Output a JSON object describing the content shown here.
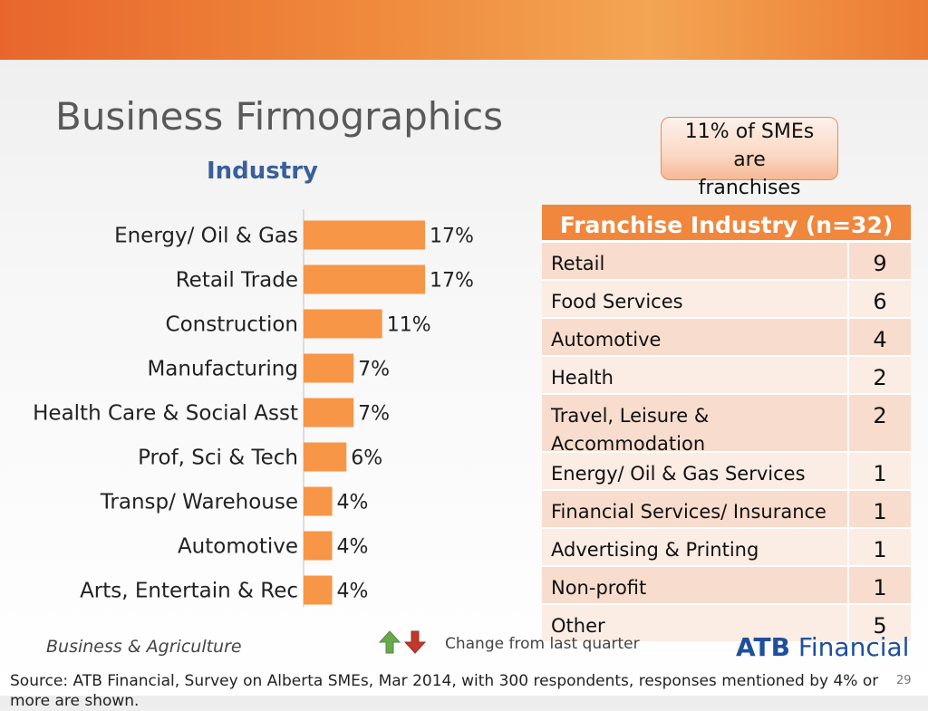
{
  "title": "Business Firmographics",
  "subtitle": "Industry",
  "callout": {
    "lines": [
      "11% of SMEs",
      "are",
      "franchises"
    ]
  },
  "chart_data": {
    "type": "bar",
    "orientation": "horizontal",
    "categories": [
      "Energy/ Oil & Gas",
      "Retail Trade",
      "Construction",
      "Manufacturing",
      "Health Care & Social Asst",
      "Prof, Sci & Tech",
      "Transp/ Warehouse",
      "Automotive",
      "Arts, Entertain & Rec"
    ],
    "values": [
      17,
      17,
      11,
      7,
      7,
      6,
      4,
      4,
      4
    ],
    "data_labels": [
      "17%",
      "17%",
      "11%",
      "7%",
      "7%",
      "6%",
      "4%",
      "4%",
      "4%"
    ],
    "color": "#f79646",
    "title": "Industry",
    "xlim": [
      0,
      20
    ],
    "grid": false,
    "legend": "none"
  },
  "franchise_table": {
    "header": "Franchise Industry (n=32)",
    "rows": [
      {
        "label": "Retail",
        "count": "9"
      },
      {
        "label": "Food Services",
        "count": "6"
      },
      {
        "label": "Automotive",
        "count": "4"
      },
      {
        "label": "Health",
        "count": "2"
      },
      {
        "label": "Travel, Leisure & Accommodation",
        "count": "2"
      },
      {
        "label": "Energy/ Oil & Gas Services",
        "count": "1"
      },
      {
        "label": "Financial Services/ Insurance",
        "count": "1"
      },
      {
        "label": "Advertising & Printing",
        "count": "1"
      },
      {
        "label": "Non-profit",
        "count": "1"
      },
      {
        "label": "Other",
        "count": "5"
      }
    ]
  },
  "footer": {
    "section": "Business & Agriculture",
    "legend_text": "Change from last quarter",
    "logo_bold": "ATB",
    "logo_rest": " Financial",
    "source": "Source: ATB Financial, Survey on Alberta SMEs, Mar 2014, with 300 respondents, responses mentioned by 4% or more are shown.",
    "page_number": "29"
  },
  "colors": {
    "accent": "#f0873d",
    "bar": "#f79646",
    "up_arrow": "#6aa84f",
    "down_arrow": "#c0392b",
    "brand_blue": "#1e4f9c"
  }
}
